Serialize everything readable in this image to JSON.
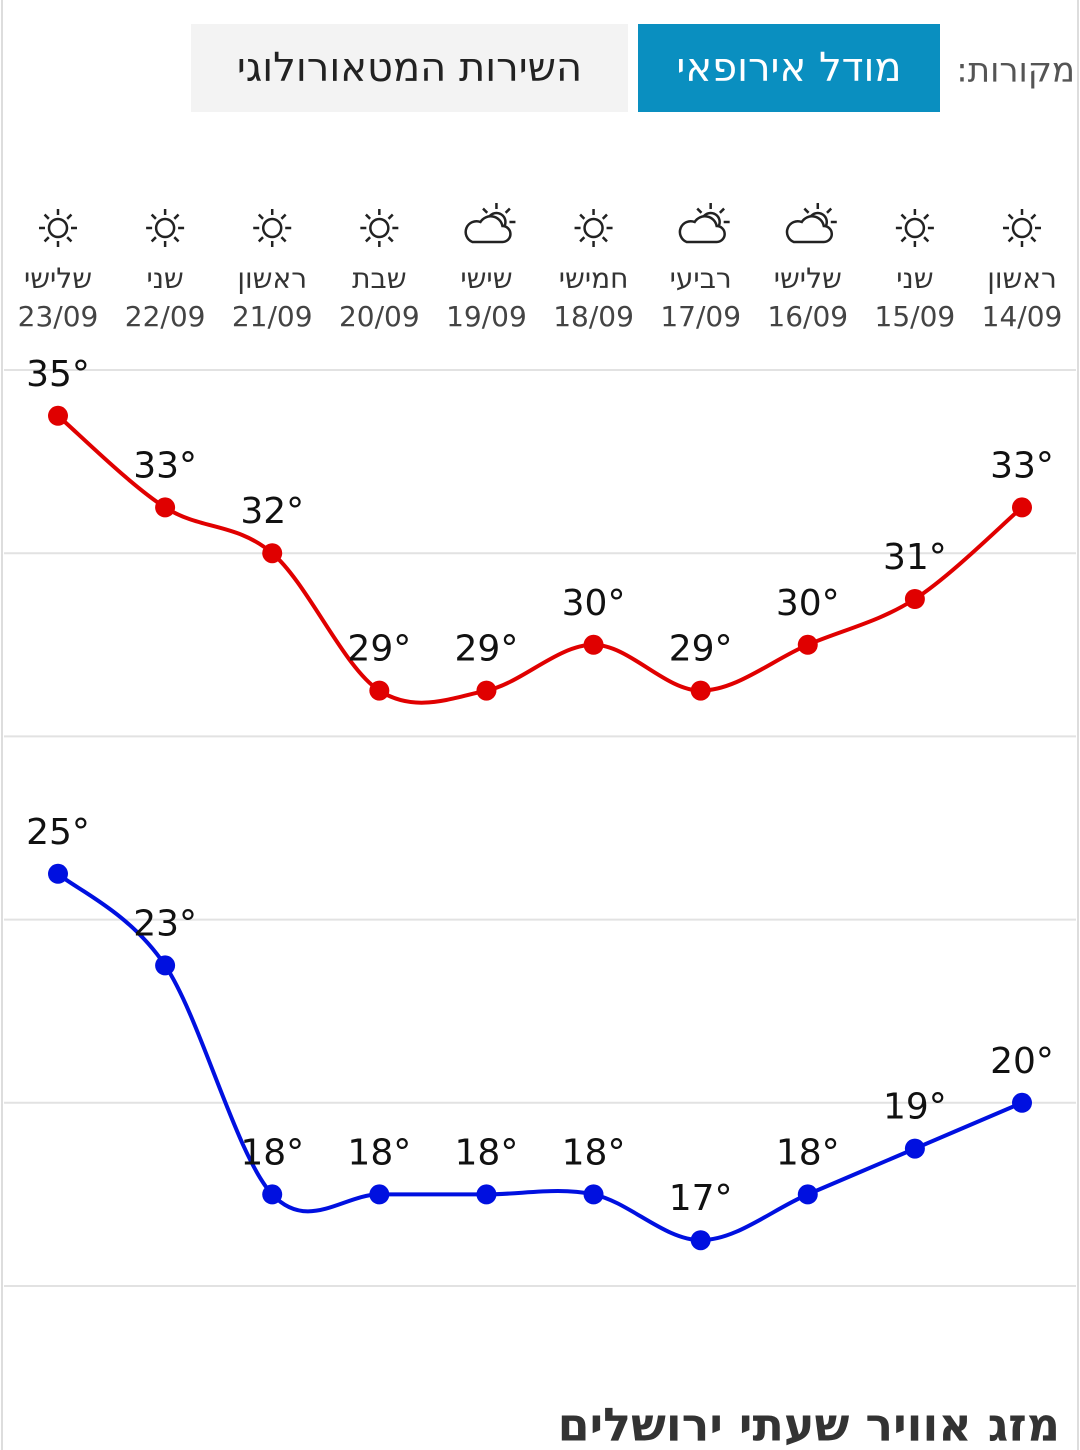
{
  "header": {
    "sources_label": "מקורות:",
    "tabs": [
      "מודל אירופאי",
      "השירות המטאורולוגי"
    ],
    "active_tab": 0
  },
  "chart_data": {
    "type": "line",
    "days": [
      "ראשון",
      "שני",
      "שלישי",
      "רביעי",
      "חמישי",
      "שישי",
      "שבת",
      "ראשון",
      "שני",
      "שלישי"
    ],
    "categories": [
      "14/09",
      "15/09",
      "16/09",
      "17/09",
      "18/09",
      "19/09",
      "20/09",
      "21/09",
      "22/09",
      "23/09"
    ],
    "icons": [
      "sun",
      "sun",
      "partly-cloudy",
      "partly-cloudy",
      "sun",
      "partly-cloudy",
      "sun",
      "sun",
      "sun",
      "sun"
    ],
    "series": [
      {
        "color": "#e00000",
        "values": [
          33,
          31,
          30,
          29,
          30,
          29,
          29,
          32,
          33,
          35
        ],
        "value_labels": [
          "33°",
          "31°",
          "30°",
          "29°",
          "30°",
          "29°",
          "29°",
          "32°",
          "33°",
          "35°"
        ]
      },
      {
        "color": "#0010e0",
        "values": [
          20,
          19,
          18,
          17,
          18,
          18,
          18,
          18,
          23,
          25
        ],
        "value_labels": [
          "20°",
          "19°",
          "18°",
          "17°",
          "18°",
          "18°",
          "18°",
          "18°",
          "23°",
          "25°"
        ]
      }
    ],
    "ylim": [
      16,
      36
    ],
    "yticks": [
      16,
      20,
      24,
      28,
      32,
      36
    ],
    "grid": true
  },
  "footer": {
    "title": "מזג אוויר שעתי ירושלים"
  }
}
